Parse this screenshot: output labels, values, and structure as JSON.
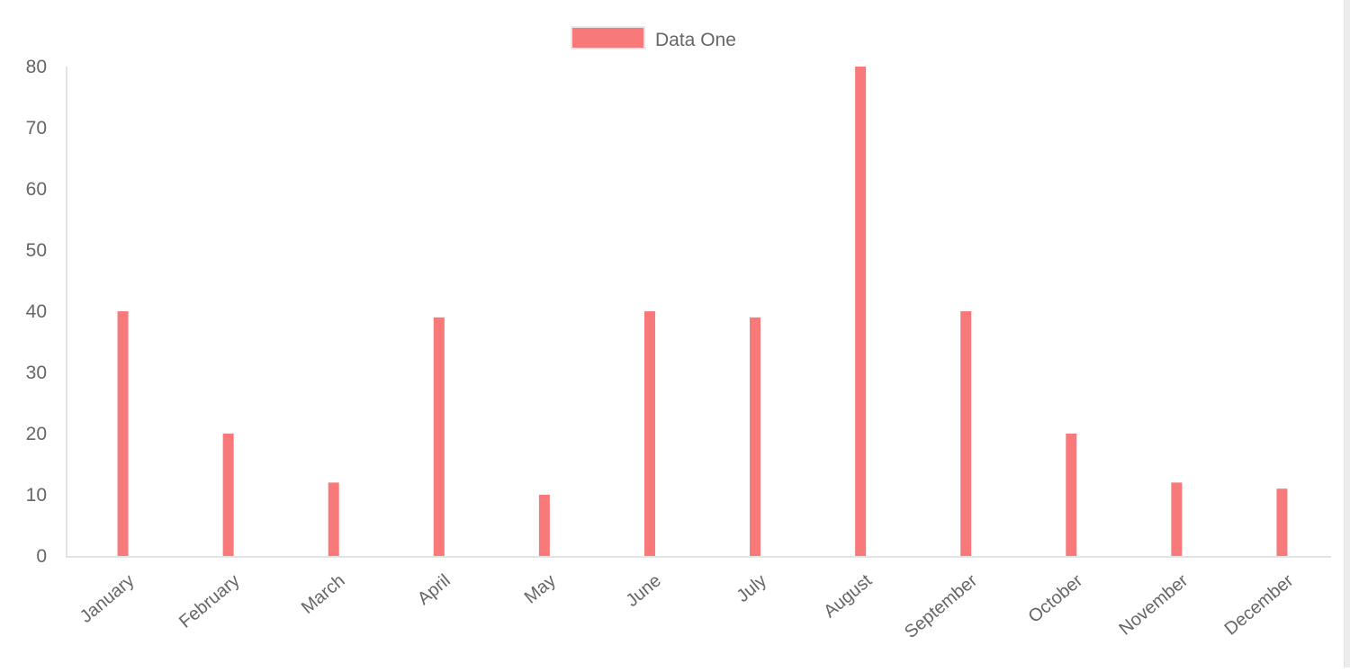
{
  "chart_data": {
    "type": "bar",
    "categories": [
      "January",
      "February",
      "March",
      "April",
      "May",
      "June",
      "July",
      "August",
      "September",
      "October",
      "November",
      "December"
    ],
    "series": [
      {
        "name": "Data One",
        "values": [
          40,
          20,
          12,
          39,
          10,
          40,
          39,
          80,
          40,
          20,
          12,
          11
        ],
        "color": "#f87979"
      }
    ],
    "ylim": [
      0,
      80
    ],
    "yticks": [
      0,
      10,
      20,
      30,
      40,
      50,
      60,
      70,
      80
    ],
    "grid": false,
    "legend": "top-center",
    "title": "",
    "xlabel": "",
    "ylabel": ""
  }
}
